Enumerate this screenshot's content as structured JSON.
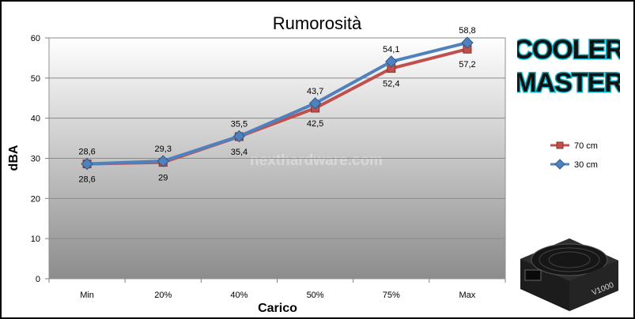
{
  "chart_data": {
    "type": "line",
    "title": "Rumorosità",
    "xlabel": "Carico",
    "ylabel": "dBA",
    "categories": [
      "Min",
      "20%",
      "40%",
      "50%",
      "75%",
      "Max"
    ],
    "ylim": [
      0,
      60
    ],
    "yticks": [
      0,
      10,
      20,
      30,
      40,
      50,
      60
    ],
    "grid": true,
    "legend_position": "right",
    "series": [
      {
        "name": "70 cm",
        "color": "#c0504d",
        "marker": "square",
        "values": [
          28.6,
          29,
          35.4,
          42.5,
          52.4,
          57.2
        ],
        "labels": [
          "28,6",
          "29",
          "35,4",
          "42,5",
          "52,4",
          "57,2"
        ]
      },
      {
        "name": "30 cm",
        "color": "#4f81bd",
        "marker": "diamond",
        "values": [
          28.6,
          29.3,
          35.5,
          43.7,
          54.1,
          58.8
        ],
        "labels": [
          "28,6",
          "29,3",
          "35,5",
          "43,7",
          "54,1",
          "58,8"
        ]
      }
    ]
  },
  "watermark": "nexthardware.com",
  "logo": {
    "line1": "COOLER",
    "line2": "MASTER",
    "colors": {
      "text": "#111111",
      "outline": "#0bb5c9"
    }
  },
  "product_image": {
    "icon": "power-supply-icon",
    "label": "V1000"
  }
}
